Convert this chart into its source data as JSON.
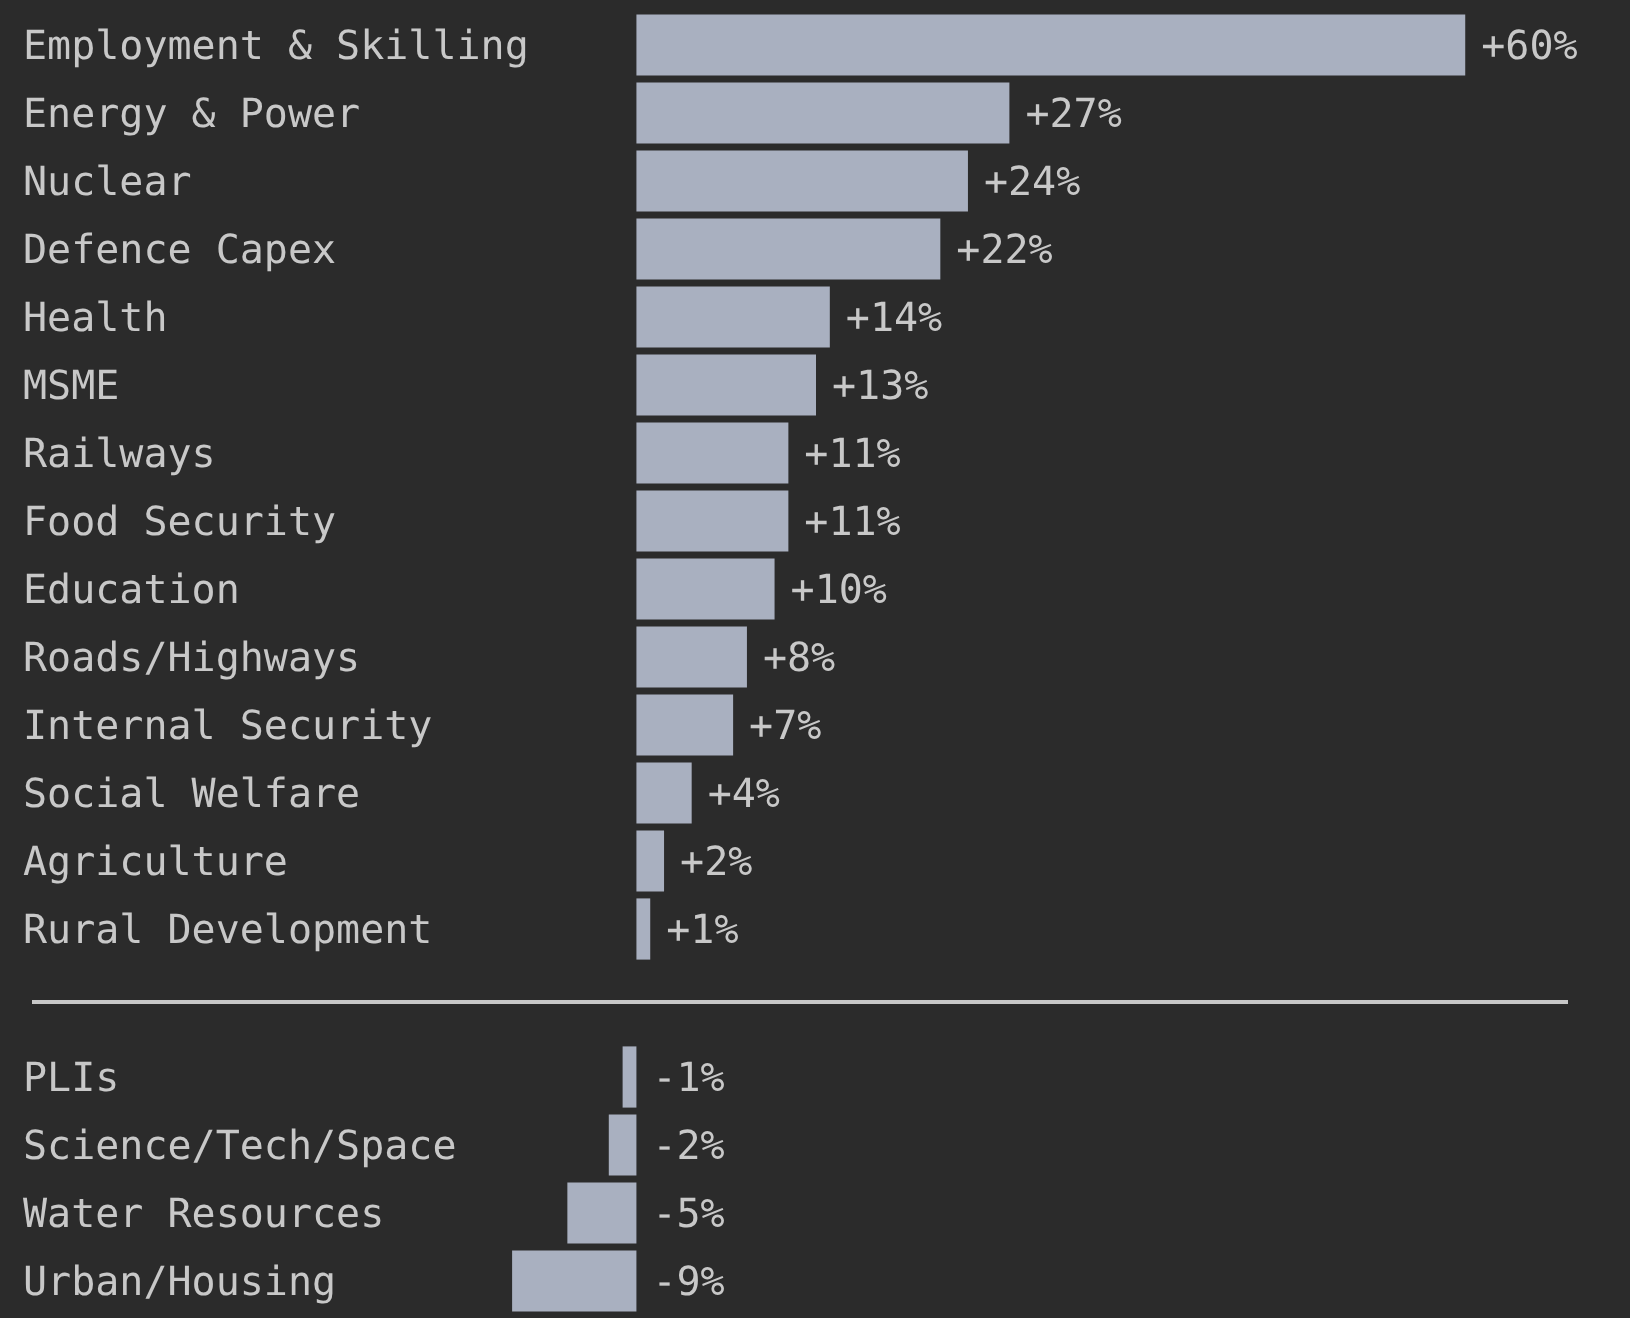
{
  "chart_data": [
    {
      "type": "bar",
      "orientation": "horizontal",
      "color": "#a9b0c0",
      "categories": [
        "Employment & Skilling",
        "Energy & Power",
        "Nuclear",
        "Defence Capex",
        "Health",
        "MSME",
        "Railways",
        "Food Security",
        "Education",
        "Roads/Highways",
        "Internal Security",
        "Social Welfare",
        "Agriculture",
        "Rural Development"
      ],
      "values": [
        60,
        27,
        24,
        22,
        14,
        13,
        11,
        11,
        10,
        8,
        7,
        4,
        2,
        1
      ],
      "value_labels": [
        "+60%",
        "+27%",
        "+24%",
        "+22%",
        "+14%",
        "+13%",
        "+11%",
        "+11%",
        "+10%",
        "+8%",
        "+7%",
        "+4%",
        "+2%",
        "+1%"
      ]
    },
    {
      "type": "bar",
      "orientation": "horizontal",
      "color": "#a9b0c0",
      "categories": [
        "PLIs",
        "Science/Tech/Space",
        "Water Resources",
        "Urban/Housing"
      ],
      "values": [
        -1,
        -2,
        -5,
        -9
      ],
      "value_labels": [
        "-1%",
        "-2%",
        "-5%",
        "-9%"
      ]
    }
  ]
}
